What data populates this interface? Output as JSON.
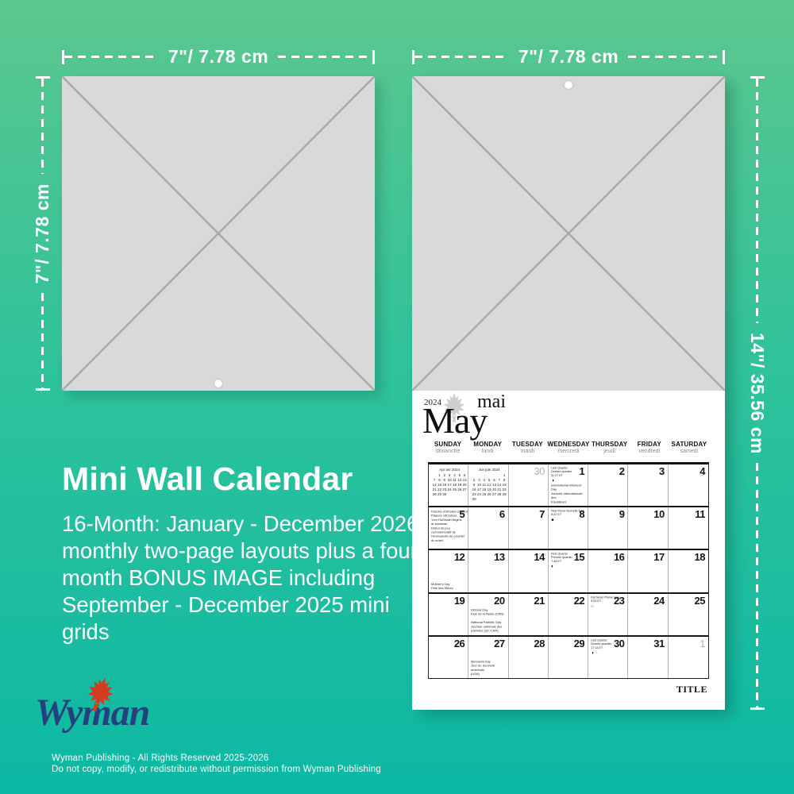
{
  "dims": {
    "top_left": "7\"/ 7.78 cm",
    "left": "7\"/ 7.78 cm",
    "top_right": "7\"/ 7.78 cm",
    "right": "14\"/ 35.56 cm"
  },
  "info": {
    "title": "Mini Wall Calendar",
    "body": "16-Month: January - December 2026 monthly two-page layouts plus a four month BONUS IMAGE including September - December 2025 mini grids"
  },
  "brand": {
    "logo_text": "Wyman",
    "line1": "Wyman Publishing - All Rights Reserved 2025-2026",
    "line2": "Do not copy, modify, or redistribute without permission from Wyman Publishing"
  },
  "colors": {
    "background_top": "#5bc78e",
    "background_mid": "#2ec29b",
    "background_bottom": "#0cb8a4",
    "logo_navy": "#24417d",
    "leaf_red": "#d23b1e"
  },
  "cal": {
    "year": "2024",
    "month_fr": "mai",
    "month_en": "May",
    "title_label": "TITLE",
    "day_headers": [
      {
        "en": "SUNDAY",
        "fr": "dimanche"
      },
      {
        "en": "MONDAY",
        "fr": "lundi"
      },
      {
        "en": "TUESDAY",
        "fr": "mardi"
      },
      {
        "en": "WEDNESDAY",
        "fr": "mercredi"
      },
      {
        "en": "THURSDAY",
        "fr": "jeudi"
      },
      {
        "en": "FRIDAY",
        "fr": "vendredi"
      },
      {
        "en": "SATURDAY",
        "fr": "samedi"
      }
    ],
    "mini_calendars": [
      {
        "title": "Apr avr 2024",
        "weeks": [
          [
            "",
            "1",
            "2",
            "3",
            "4",
            "5",
            "6"
          ],
          [
            "7",
            "8",
            "9",
            "10",
            "11",
            "12",
            "13"
          ],
          [
            "14",
            "15",
            "16",
            "17",
            "18",
            "19",
            "20"
          ],
          [
            "21",
            "22",
            "23",
            "24",
            "25",
            "26",
            "27"
          ],
          [
            "28",
            "29",
            "30",
            "",
            "",
            "",
            ""
          ]
        ]
      },
      {
        "title": "Jun juin 2024",
        "weeks": [
          [
            "",
            "",
            "",
            "",
            "",
            "",
            "1"
          ],
          [
            "2",
            "3",
            "4",
            "5",
            "6",
            "7",
            "8"
          ],
          [
            "9",
            "10",
            "11",
            "12",
            "13",
            "14",
            "15"
          ],
          [
            "16",
            "17",
            "18",
            "19",
            "20",
            "21",
            "22"
          ],
          [
            "23",
            "24",
            "25",
            "26",
            "27",
            "28",
            "29"
          ],
          [
            "30",
            "",
            "",
            "",
            "",
            "",
            ""
          ]
        ]
      }
    ],
    "weeks": [
      [
        {
          "mini": 0
        },
        {
          "mini": 1
        },
        {
          "day": "30",
          "muted": true
        },
        {
          "day": "1",
          "moon": {
            "phase": "last-quarter",
            "glyph": "◑",
            "lines": [
              "Last Quarter",
              "Dernier quartier",
              "11:27 ET"
            ]
          },
          "holiday": {
            "pos": "bottom",
            "lines": [
              "International Workers' Day",
              "Journée internationale des",
              "travailleurs"
            ]
          }
        },
        {
          "day": "2"
        },
        {
          "day": "3"
        },
        {
          "day": "4"
        }
      ],
      [
        {
          "day": "5",
          "holiday": {
            "pos": "top",
            "lines": [
              "Pascha (Orthodox Easter)",
              "Pâques orthodoxe",
              "Yom HaShoah begins",
              "at sundown",
              "Début du jour",
              "commémoratif de",
              "l'Holocauste au coucher",
              "du soleil"
            ]
          }
        },
        {
          "day": "6"
        },
        {
          "day": "7"
        },
        {
          "day": "8",
          "moon": {
            "phase": "new-moon",
            "glyph": "●",
            "lines": [
              "New Moon Nouvelle lune",
              "3:22 ET"
            ]
          }
        },
        {
          "day": "9"
        },
        {
          "day": "10"
        },
        {
          "day": "11"
        }
      ],
      [
        {
          "day": "12",
          "holiday": {
            "pos": "bottom",
            "lines": [
              "Mother's Day",
              "Fête des Mères"
            ]
          }
        },
        {
          "day": "13"
        },
        {
          "day": "14"
        },
        {
          "day": "15",
          "moon": {
            "phase": "first-quarter",
            "glyph": "◐",
            "lines": [
              "First Quarter",
              "Premier quartier",
              "7:48 ET"
            ]
          }
        },
        {
          "day": "16"
        },
        {
          "day": "17"
        },
        {
          "day": "18"
        }
      ],
      [
        {
          "day": "19"
        },
        {
          "day": "20",
          "holiday": {
            "pos": "bottom",
            "lines": [
              "Victoria Day",
              "Fête de la Reine (CAN)",
              "",
              "National Patriots' Day",
              "Journée nationale des",
              "patriotes (QC CAN)"
            ]
          }
        },
        {
          "day": "21"
        },
        {
          "day": "22"
        },
        {
          "day": "23",
          "moon": {
            "phase": "full-moon",
            "glyph": "○",
            "lines": [
              "Full Moon Pleine lune",
              "9:53 ET"
            ]
          }
        },
        {
          "day": "24"
        },
        {
          "day": "25"
        }
      ],
      [
        {
          "day": "26"
        },
        {
          "day": "27",
          "holiday": {
            "pos": "bottom",
            "lines": [
              "Memorial Day",
              "Jour du Souvenir américain",
              "(USA)"
            ]
          }
        },
        {
          "day": "28"
        },
        {
          "day": "29"
        },
        {
          "day": "30",
          "moon": {
            "phase": "last-quarter",
            "glyph": "◑",
            "lines": [
              "Last Quarter",
              "Dernier quartier",
              "17:13 ET"
            ]
          }
        },
        {
          "day": "31"
        },
        {
          "day": "1",
          "muted": true
        }
      ]
    ]
  }
}
